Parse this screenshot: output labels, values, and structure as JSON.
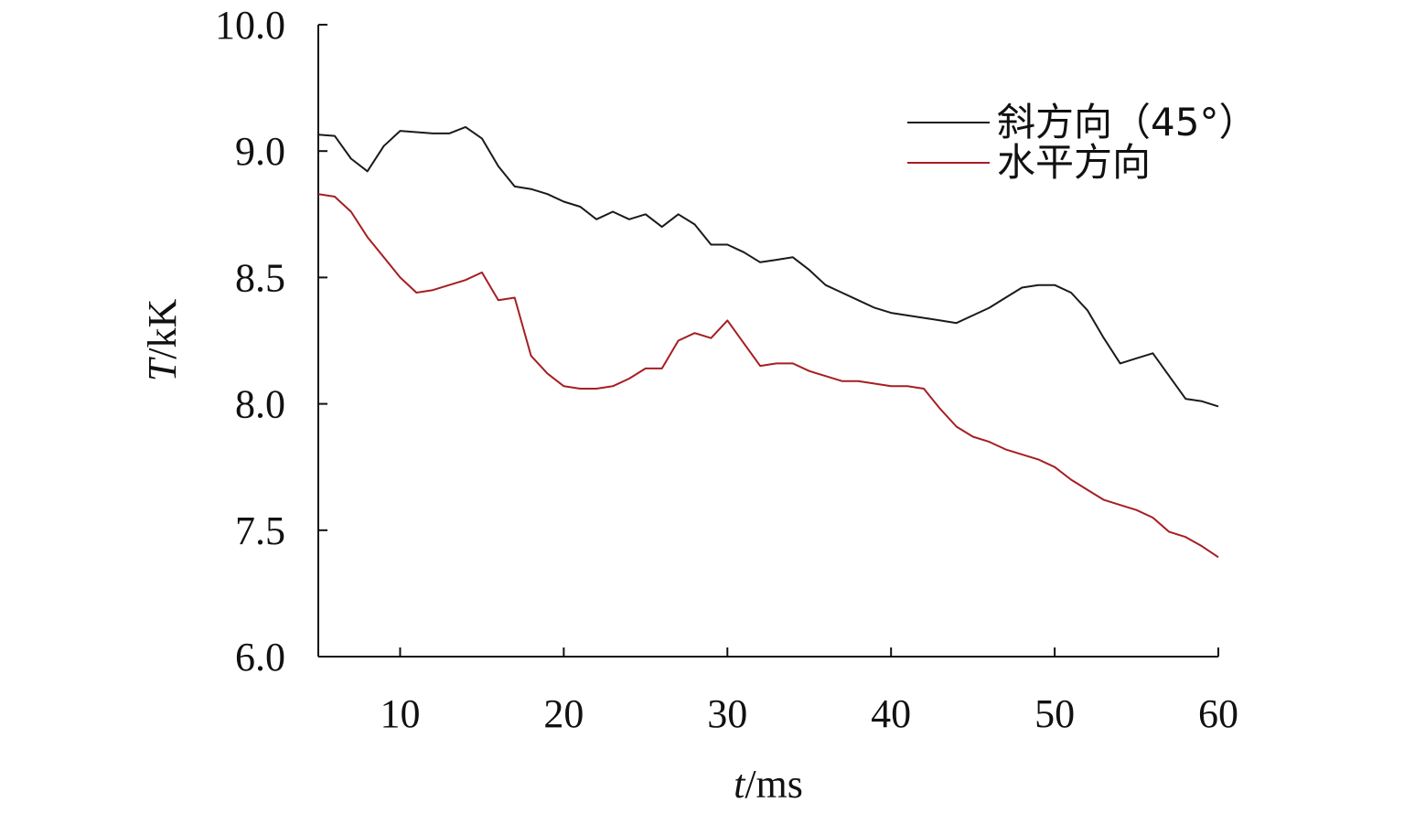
{
  "chart_data": {
    "type": "line",
    "x_ticks": [
      "10",
      "20",
      "30",
      "40",
      "50",
      "60"
    ],
    "y_ticks": [
      "6.0",
      "7.5",
      "8.0",
      "8.5",
      "9.0",
      "10.0"
    ],
    "xlabel": {
      "var": "t",
      "unit": "/ms"
    },
    "ylabel": {
      "var": "T",
      "unit": "/kK"
    },
    "xlim": [
      5,
      60
    ],
    "legend_position": "top-right",
    "grid": false,
    "series": [
      {
        "name": "斜方向（45°）",
        "color": "#1a1a1a",
        "x": [
          5,
          6,
          7,
          8,
          9,
          10,
          11,
          12,
          13,
          14,
          15,
          16,
          17,
          18,
          19,
          20,
          21,
          22,
          23,
          24,
          25,
          26,
          27,
          28,
          29,
          30,
          31,
          32,
          33,
          34,
          35,
          36,
          37,
          38,
          39,
          40,
          41,
          42,
          43,
          44,
          45,
          46,
          47,
          48,
          49,
          50,
          51,
          52,
          53,
          54,
          55,
          56,
          57,
          58,
          59,
          60
        ],
        "y": [
          9.13,
          9.12,
          8.97,
          8.92,
          9.04,
          9.16,
          9.15,
          9.14,
          9.14,
          9.19,
          9.1,
          8.94,
          8.86,
          8.85,
          8.83,
          8.8,
          8.78,
          8.73,
          8.76,
          8.73,
          8.75,
          8.7,
          8.75,
          8.71,
          8.63,
          8.63,
          8.6,
          8.56,
          8.57,
          8.58,
          8.53,
          8.47,
          8.44,
          8.41,
          8.38,
          8.36,
          8.35,
          8.34,
          8.33,
          8.32,
          8.35,
          8.38,
          8.42,
          8.46,
          8.47,
          8.47,
          8.44,
          8.37,
          8.26,
          8.16,
          8.18,
          8.2,
          8.11,
          8.02,
          8.01,
          7.99
        ]
      },
      {
        "name": "水平方向",
        "color": "#a61e22",
        "x": [
          5,
          6,
          7,
          8,
          9,
          10,
          11,
          12,
          13,
          14,
          15,
          16,
          17,
          18,
          19,
          20,
          21,
          22,
          23,
          24,
          25,
          26,
          27,
          28,
          29,
          30,
          31,
          32,
          33,
          34,
          35,
          36,
          37,
          38,
          39,
          40,
          41,
          42,
          43,
          44,
          45,
          46,
          47,
          48,
          49,
          50,
          51,
          52,
          53,
          54,
          55,
          56,
          57,
          58,
          59,
          60
        ],
        "y": [
          8.83,
          8.82,
          8.76,
          8.66,
          8.58,
          8.5,
          8.44,
          8.45,
          8.47,
          8.49,
          8.52,
          8.41,
          8.42,
          8.19,
          8.12,
          8.07,
          8.06,
          8.06,
          8.07,
          8.1,
          8.14,
          8.14,
          8.25,
          8.28,
          8.26,
          8.33,
          8.24,
          8.15,
          8.16,
          8.16,
          8.13,
          8.11,
          8.09,
          8.09,
          8.08,
          8.07,
          8.07,
          8.06,
          7.98,
          7.91,
          7.87,
          7.85,
          7.82,
          7.8,
          7.78,
          7.75,
          7.7,
          7.66,
          7.62,
          7.6,
          7.58,
          7.55,
          7.48,
          7.42,
          7.31,
          7.18
        ]
      }
    ]
  }
}
